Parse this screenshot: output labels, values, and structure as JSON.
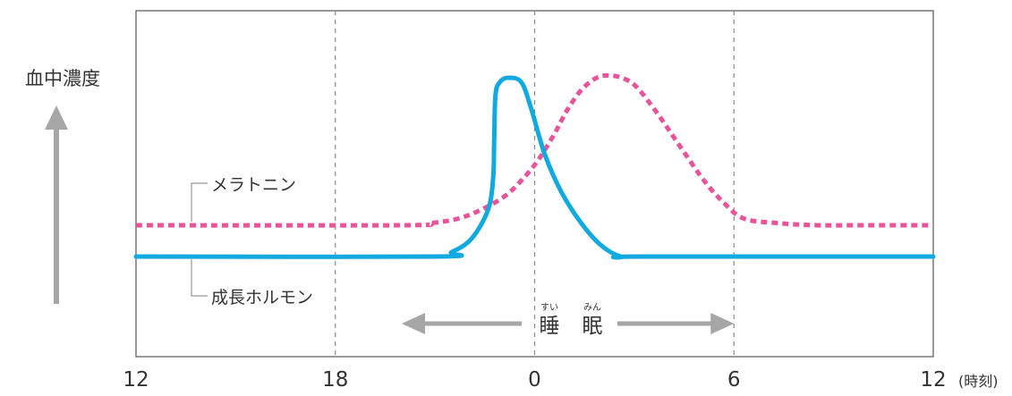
{
  "chart_data": {
    "type": "line",
    "ylabel": "血中濃度",
    "xunit": "(時刻)",
    "x_ticks": [
      {
        "label": "12",
        "pos": 0
      },
      {
        "label": "18",
        "pos": 6
      },
      {
        "label": "0",
        "pos": 12
      },
      {
        "label": "6",
        "pos": 18
      },
      {
        "label": "12",
        "pos": 24
      }
    ],
    "xlim": [
      0,
      24
    ],
    "ylim": [
      0,
      100
    ],
    "grid_lines_at": [
      6,
      12,
      18
    ],
    "series": [
      {
        "name": "メラトニン",
        "color": "#e8549a",
        "style": "dotted",
        "x": [
          0,
          8,
          8.9,
          9.7,
          10.4,
          11.1,
          11.6,
          12.1,
          12.6,
          13,
          13.5,
          14.1,
          14.9,
          15.6,
          16.3,
          17.1,
          17.7,
          18.3,
          19.3,
          20.5,
          21.8,
          24
        ],
        "y": [
          24,
          24,
          25,
          27,
          31,
          37,
          44,
          53,
          65,
          76,
          86,
          91,
          88,
          76,
          61,
          44,
          34,
          27,
          25,
          24,
          24,
          24
        ]
      },
      {
        "name": "成長ホルモン",
        "color": "#12a9e0",
        "style": "solid",
        "x": [
          0,
          9,
          9.5,
          10.1,
          10.6,
          10.75,
          10.78,
          10.82,
          10.95,
          11.2,
          11.6,
          11.9,
          12.3,
          12.8,
          13.4,
          14,
          14.6,
          15.2,
          24
        ],
        "y": [
          10,
          10,
          12,
          18,
          31,
          45,
          60,
          82,
          88,
          90,
          88,
          76,
          56,
          39,
          25,
          15,
          10,
          10,
          10
        ]
      }
    ],
    "annotation": {
      "text": "睡眠",
      "ruby": [
        "すい",
        "みん"
      ],
      "from": 12,
      "to": 18,
      "arrow_from": 8,
      "arrow_to": 18
    },
    "colors": {
      "axis_arrow": "#a6a6a6",
      "frame": "#555555",
      "grid": "#888888",
      "sleep_arrow": "#a6a6a6"
    }
  }
}
